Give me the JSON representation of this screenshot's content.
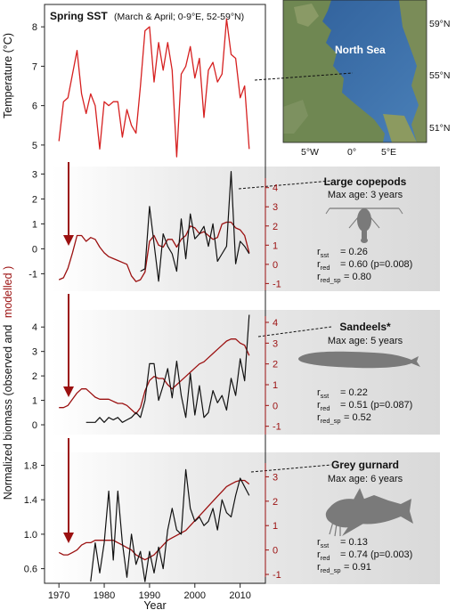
{
  "colors": {
    "sst": "#d62020",
    "model": "#9b1010",
    "observed": "#111111",
    "panel_grey": "#e2e2e2",
    "sea": "#3b6ea8",
    "land": "#7a8a5a"
  },
  "chart_data": [
    {
      "type": "line",
      "title": "Spring SST",
      "subtitle": "(March & April; 0-9°E, 52-59°N)",
      "ylabel": "Temperature (°C)",
      "ylim": [
        4.5,
        8.5
      ],
      "yticks": [
        "5",
        "6",
        "7",
        "8"
      ],
      "xlim": [
        1968,
        2014
      ],
      "series": [
        {
          "x": [
            1970,
            1971,
            1972,
            1973,
            1974,
            1975,
            1976,
            1977,
            1978,
            1979,
            1980,
            1981,
            1982,
            1983,
            1984,
            1985,
            1986,
            1987,
            1988,
            1989,
            1990,
            1991,
            1992,
            1993,
            1994,
            1995,
            1996,
            1997,
            1998,
            1999,
            2000,
            2001,
            2002,
            2003,
            2004,
            2005,
            2006,
            2007,
            2008,
            2009,
            2010,
            2011,
            2012
          ],
          "values": [
            5.1,
            6.1,
            6.2,
            6.8,
            7.4,
            6.3,
            5.8,
            6.3,
            6.0,
            4.9,
            6.1,
            6.0,
            6.1,
            6.1,
            5.2,
            5.9,
            5.5,
            5.3,
            6.5,
            7.9,
            8.0,
            6.6,
            7.6,
            6.9,
            7.6,
            6.9,
            4.7,
            6.8,
            7.0,
            7.5,
            6.7,
            7.2,
            5.7,
            6.9,
            7.1,
            6.6,
            6.8,
            8.2,
            7.3,
            7.2,
            6.2,
            6.5,
            4.9
          ]
        }
      ]
    },
    {
      "type": "line",
      "title": "Large copepods",
      "subtitle": "Max age: 3 years",
      "ylim": [
        -1.7,
        3.3
      ],
      "yticks": [
        "-1",
        "0",
        "1",
        "2",
        "3"
      ],
      "y2lim": [
        -1.4,
        5.1
      ],
      "y2ticks": [
        "-1",
        "0",
        "1",
        "2",
        "3",
        "4"
      ],
      "series": [
        {
          "x": [
            1988,
            1989,
            1990,
            1991,
            1992,
            1993,
            1994,
            1995,
            1996,
            1997,
            1998,
            1999,
            2000,
            2001,
            2002,
            2003,
            2004,
            2005,
            2006,
            2007,
            2008,
            2009,
            2010,
            2011,
            2012
          ],
          "values": [
            -0.9,
            -0.8,
            1.7,
            0.2,
            -1.3,
            0.6,
            0.1,
            -0.2,
            -0.9,
            1.2,
            -0.4,
            1.4,
            0.4,
            0.6,
            0.9,
            0.1,
            1.0,
            -0.5,
            -0.2,
            0.1,
            3.1,
            -0.6,
            0.3,
            0.1,
            -0.2
          ]
        },
        {
          "x": [
            1970,
            1971,
            1972,
            1973,
            1974,
            1975,
            1976,
            1977,
            1978,
            1979,
            1980,
            1981,
            1982,
            1983,
            1984,
            1985,
            1986,
            1987,
            1988,
            1989,
            1990,
            1991,
            1992,
            1993,
            1994,
            1995,
            1996,
            1997,
            1998,
            1999,
            2000,
            2001,
            2002,
            2003,
            2004,
            2005,
            2006,
            2007,
            2008,
            2009,
            2010,
            2011,
            2012
          ],
          "values": [
            -0.8,
            -0.7,
            -0.2,
            0.6,
            1.5,
            1.5,
            1.2,
            1.4,
            1.3,
            0.9,
            0.6,
            0.4,
            0.3,
            0.2,
            0.1,
            0.0,
            -0.6,
            -0.9,
            -0.8,
            -0.4,
            1.2,
            1.5,
            1.0,
            0.9,
            1.3,
            1.3,
            0.9,
            1.3,
            1.5,
            2.0,
            1.9,
            1.6,
            1.7,
            1.5,
            1.3,
            1.4,
            2.1,
            2.2,
            2.2,
            1.9,
            1.8,
            1.5,
            0.6
          ]
        }
      ],
      "stats": {
        "r_sst": "= 0.26",
        "r_red": "= 0.60 (p=0.008)",
        "r_red_sp": "= 0.80"
      }
    },
    {
      "type": "line",
      "title": "Sandeels*",
      "subtitle": "Max age: 5 years",
      "ylim": [
        -0.4,
        4.7
      ],
      "yticks": [
        "0",
        "1",
        "2",
        "3",
        "4"
      ],
      "y2lim": [
        -1.4,
        4.6
      ],
      "y2ticks": [
        "-1",
        "0",
        "1",
        "2",
        "3",
        "4"
      ],
      "series": [
        {
          "x": [
            1976,
            1977,
            1978,
            1979,
            1980,
            1981,
            1982,
            1983,
            1984,
            1985,
            1986,
            1987,
            1988,
            1989,
            1990,
            1991,
            1992,
            1993,
            1994,
            1995,
            1996,
            1997,
            1998,
            1999,
            2000,
            2001,
            2002,
            2003,
            2004,
            2005,
            2006,
            2007,
            2008,
            2009,
            2010,
            2011,
            2012
          ],
          "values": [
            0.1,
            0.1,
            0.1,
            0.3,
            0.1,
            0.3,
            0.2,
            0.3,
            0.1,
            0.2,
            0.3,
            0.5,
            0.3,
            1.0,
            2.5,
            2.5,
            1.0,
            1.6,
            2.3,
            1.1,
            2.6,
            1.2,
            0.3,
            2.1,
            0.4,
            1.6,
            0.3,
            0.5,
            1.4,
            0.9,
            1.2,
            0.6,
            1.9,
            1.2,
            2.7,
            1.8,
            4.5
          ]
        },
        {
          "x": [
            1970,
            1971,
            1972,
            1973,
            1974,
            1975,
            1976,
            1977,
            1978,
            1979,
            1980,
            1981,
            1982,
            1983,
            1984,
            1985,
            1986,
            1987,
            1988,
            1989,
            1990,
            1991,
            1992,
            1993,
            1994,
            1995,
            1996,
            1997,
            1998,
            1999,
            2000,
            2001,
            2002,
            2003,
            2004,
            2005,
            2006,
            2007,
            2008,
            2009,
            2010,
            2011,
            2012
          ],
          "values": [
            -0.1,
            -0.1,
            0.0,
            0.3,
            0.6,
            0.8,
            0.8,
            0.6,
            0.4,
            0.3,
            0.3,
            0.3,
            0.2,
            0.1,
            0.1,
            0.0,
            -0.2,
            -0.4,
            -0.1,
            0.7,
            1.2,
            1.4,
            1.3,
            1.3,
            1.0,
            0.8,
            1.0,
            1.2,
            1.4,
            1.6,
            1.8,
            2.0,
            2.1,
            2.3,
            2.5,
            2.7,
            2.9,
            3.1,
            3.2,
            3.2,
            3.0,
            2.9,
            2.4
          ]
        }
      ],
      "stats": {
        "r_sst": "= 0.22",
        "r_red": "= 0.51 (p=0.087)",
        "r_red_sp": "= 0.52"
      }
    },
    {
      "type": "line",
      "title": "Grey gurnard",
      "subtitle": "Max age: 6 years",
      "ylim": [
        0.42,
        1.95
      ],
      "yticks": [
        "0.6",
        "1.0",
        "1.4",
        "1.8"
      ],
      "y2lim": [
        -1.4,
        4.0
      ],
      "y2ticks": [
        "-1",
        "0",
        "1",
        "2",
        "3"
      ],
      "xlabel": "Year",
      "xticks": [
        "1970",
        "1980",
        "1990",
        "2000",
        "2010"
      ],
      "series": [
        {
          "x": [
            1977,
            1978,
            1979,
            1980,
            1981,
            1982,
            1983,
            1984,
            1985,
            1986,
            1987,
            1988,
            1989,
            1990,
            1991,
            1992,
            1993,
            1994,
            1995,
            1996,
            1997,
            1998,
            1999,
            2000,
            2001,
            2002,
            2003,
            2004,
            2005,
            2006,
            2007,
            2008,
            2009,
            2010,
            2011,
            2012
          ],
          "values": [
            0.45,
            0.9,
            0.55,
            0.9,
            1.5,
            0.7,
            1.5,
            0.9,
            0.5,
            1.0,
            0.65,
            0.8,
            0.45,
            0.8,
            0.55,
            0.85,
            0.6,
            1.05,
            1.3,
            1.05,
            1.0,
            1.75,
            1.3,
            1.15,
            1.2,
            1.1,
            1.15,
            1.3,
            1.05,
            1.4,
            1.25,
            1.2,
            1.45,
            1.65,
            1.55,
            1.45
          ]
        },
        {
          "x": [
            1970,
            1971,
            1972,
            1973,
            1974,
            1975,
            1976,
            1977,
            1978,
            1979,
            1980,
            1981,
            1982,
            1983,
            1984,
            1985,
            1986,
            1987,
            1988,
            1989,
            1990,
            1991,
            1992,
            1993,
            1994,
            1995,
            1996,
            1997,
            1998,
            1999,
            2000,
            2001,
            2002,
            2003,
            2004,
            2005,
            2006,
            2007,
            2008,
            2009,
            2010,
            2011,
            2012
          ],
          "values": [
            -0.1,
            -0.2,
            -0.2,
            -0.1,
            0.0,
            0.2,
            0.3,
            0.3,
            0.4,
            0.4,
            0.4,
            0.4,
            0.4,
            0.3,
            0.2,
            0.1,
            0.0,
            -0.2,
            -0.3,
            -0.4,
            -0.3,
            -0.2,
            0.0,
            0.2,
            0.4,
            0.5,
            0.6,
            0.7,
            0.8,
            1.0,
            1.2,
            1.4,
            1.6,
            1.8,
            2.0,
            2.2,
            2.4,
            2.6,
            2.7,
            2.8,
            2.85,
            2.85,
            2.7
          ]
        }
      ],
      "stats": {
        "r_sst": "= 0.13",
        "r_red": "= 0.74 (p=0.003)",
        "r_red_sp": "= 0.91"
      }
    }
  ],
  "shared_ylabel": {
    "prefix": "Normalized biomass (observed and",
    "highlight": "modelled",
    "suffix": ")"
  },
  "stat_labels": {
    "r": "r",
    "sst": "sst",
    "red": "red",
    "red_sp": "red_sp"
  },
  "map": {
    "sea_label": "North Sea",
    "lat_labels": [
      "59°N",
      "55°N",
      "51°N"
    ],
    "lon_labels": [
      "5°W",
      "0°",
      "5°E"
    ]
  },
  "icons": [
    "copepod-silhouette-icon",
    "sandeel-silhouette-icon",
    "gurnard-silhouette-icon"
  ]
}
